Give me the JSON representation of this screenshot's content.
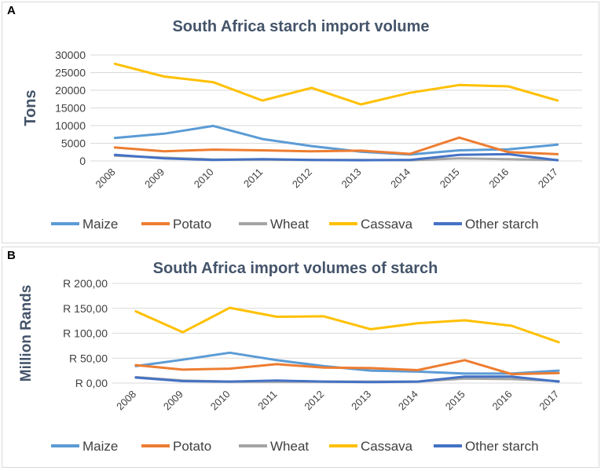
{
  "panels": [
    {
      "label": "A"
    },
    {
      "label": "B"
    }
  ],
  "colors": {
    "Maize": "#5b9bd5",
    "Potato": "#ed7d31",
    "Wheat": "#a5a5a5",
    "Cassava": "#ffc000",
    "Other starch": "#4472c4",
    "grid": "#d9d9d9",
    "title": "#44546a"
  },
  "chart_data": [
    {
      "type": "line",
      "title": "South Africa starch import volume",
      "ylabel": "Tons",
      "xlabel": "",
      "ylim": [
        0,
        30000
      ],
      "grid": true,
      "legend_position": "bottom",
      "x": [
        "2008",
        "2009",
        "2010",
        "2011",
        "2012",
        "2013",
        "2014",
        "2015",
        "2016",
        "2017"
      ],
      "y_ticks": [
        0,
        5000,
        10000,
        15000,
        20000,
        25000,
        30000
      ],
      "y_tick_labels": [
        "0",
        "5000",
        "10000",
        "15000",
        "20000",
        "25000",
        "30000"
      ],
      "series": [
        {
          "name": "Maize",
          "values": [
            6500,
            7700,
            9900,
            6200,
            4200,
            2600,
            1800,
            3000,
            3300,
            4600
          ]
        },
        {
          "name": "Potato",
          "values": [
            3800,
            2700,
            3200,
            3000,
            2700,
            2900,
            2000,
            6600,
            2500,
            1900
          ]
        },
        {
          "name": "Wheat",
          "values": [
            1500,
            900,
            400,
            400,
            300,
            300,
            200,
            700,
            500,
            300
          ]
        },
        {
          "name": "Cassava",
          "values": [
            27500,
            23900,
            22300,
            17100,
            20700,
            16000,
            19300,
            21500,
            21100,
            17100
          ]
        },
        {
          "name": "Other starch",
          "values": [
            1700,
            700,
            300,
            500,
            300,
            200,
            300,
            1700,
            1900,
            200
          ]
        }
      ]
    },
    {
      "type": "line",
      "title": "South Africa import volumes of starch",
      "ylabel": "Million Rands",
      "xlabel": "",
      "ylim": [
        0,
        200
      ],
      "grid": true,
      "legend_position": "bottom",
      "x": [
        "2008",
        "2009",
        "2010",
        "2011",
        "2012",
        "2013",
        "2014",
        "2015",
        "2016",
        "2017"
      ],
      "y_ticks": [
        0,
        50,
        100,
        150,
        200
      ],
      "y_tick_labels": [
        "R 0,00",
        "R 50,00",
        "R 100,00",
        "R 150,00",
        "R 200,00"
      ],
      "series": [
        {
          "name": "Maize",
          "values": [
            34,
            47,
            61,
            46,
            34,
            25,
            23,
            19,
            19,
            25
          ]
        },
        {
          "name": "Potato",
          "values": [
            36,
            27,
            29,
            38,
            31,
            30,
            26,
            46,
            18,
            20
          ]
        },
        {
          "name": "Wheat",
          "values": [
            12,
            5,
            3,
            3,
            3,
            3,
            3,
            9,
            8,
            4
          ]
        },
        {
          "name": "Cassava",
          "values": [
            144,
            102,
            151,
            133,
            134,
            108,
            120,
            126,
            115,
            82
          ]
        },
        {
          "name": "Other starch",
          "values": [
            11,
            4,
            3,
            5,
            3,
            2,
            3,
            13,
            13,
            3
          ]
        }
      ]
    }
  ]
}
